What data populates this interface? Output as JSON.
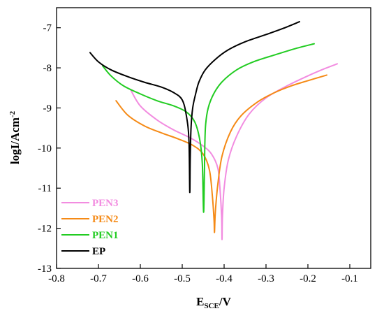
{
  "chart_data": {
    "type": "line",
    "title": "",
    "xlabel": {
      "main": "E",
      "sub": "SCE",
      "rest": "/V"
    },
    "ylabel": {
      "main": "logI/Acm",
      "sup": "-2"
    },
    "xlim": [
      -0.8,
      -0.05
    ],
    "ylim": [
      -13,
      -6.5
    ],
    "xticks": [
      -0.8,
      -0.7,
      -0.6,
      -0.5,
      -0.4,
      -0.3,
      -0.2,
      -0.1
    ],
    "xtick_labels": [
      "-0.8",
      "-0.7",
      "-0.6",
      "-0.5",
      "-0.4",
      "-0.3",
      "-0.2",
      "-0.1"
    ],
    "yticks": [
      -7,
      -8,
      -9,
      -10,
      -11,
      -12,
      -13
    ],
    "ytick_labels": [
      "-7",
      "-8",
      "-9",
      "-10",
      "-11",
      "-12",
      "-13"
    ],
    "grid": false,
    "legend_position": "bottom-left",
    "series": [
      {
        "name": "PEN3",
        "color": "#f28ce0",
        "x": [
          -0.623,
          -0.6,
          -0.56,
          -0.52,
          -0.48,
          -0.45,
          -0.43,
          -0.415,
          -0.41,
          -0.406,
          -0.405,
          -0.404,
          -0.4,
          -0.39,
          -0.37,
          -0.34,
          -0.3,
          -0.25,
          -0.2,
          -0.16,
          -0.13
        ],
        "y": [
          -8.55,
          -8.95,
          -9.3,
          -9.55,
          -9.75,
          -9.95,
          -10.15,
          -10.5,
          -11.0,
          -11.7,
          -12.28,
          -11.7,
          -11.0,
          -10.3,
          -9.7,
          -9.15,
          -8.75,
          -8.45,
          -8.2,
          -8.02,
          -7.9
        ]
      },
      {
        "name": "PEN2",
        "color": "#f58a16",
        "x": [
          -0.658,
          -0.63,
          -0.59,
          -0.55,
          -0.51,
          -0.475,
          -0.45,
          -0.435,
          -0.428,
          -0.424,
          -0.423,
          -0.421,
          -0.415,
          -0.405,
          -0.385,
          -0.36,
          -0.32,
          -0.28,
          -0.24,
          -0.2,
          -0.155
        ],
        "y": [
          -8.82,
          -9.18,
          -9.45,
          -9.62,
          -9.77,
          -9.93,
          -10.15,
          -10.55,
          -11.2,
          -11.8,
          -12.1,
          -11.6,
          -10.9,
          -10.2,
          -9.6,
          -9.2,
          -8.85,
          -8.62,
          -8.45,
          -8.32,
          -8.18
        ]
      },
      {
        "name": "PEN1",
        "color": "#22cc22",
        "x": [
          -0.69,
          -0.67,
          -0.64,
          -0.6,
          -0.56,
          -0.52,
          -0.49,
          -0.47,
          -0.458,
          -0.452,
          -0.449,
          -0.447,
          -0.446,
          -0.444,
          -0.438,
          -0.425,
          -0.405,
          -0.37,
          -0.33,
          -0.28,
          -0.23,
          -0.185
        ],
        "y": [
          -7.95,
          -8.2,
          -8.45,
          -8.65,
          -8.82,
          -8.95,
          -9.1,
          -9.35,
          -9.8,
          -10.4,
          -11.6,
          -10.6,
          -9.9,
          -9.4,
          -9.0,
          -8.65,
          -8.35,
          -8.05,
          -7.85,
          -7.68,
          -7.52,
          -7.4
        ]
      },
      {
        "name": "EP",
        "color": "#000000",
        "x": [
          -0.72,
          -0.7,
          -0.67,
          -0.63,
          -0.59,
          -0.55,
          -0.52,
          -0.5,
          -0.49,
          -0.484,
          -0.482,
          -0.481,
          -0.479,
          -0.475,
          -0.468,
          -0.46,
          -0.445,
          -0.42,
          -0.39,
          -0.35,
          -0.3,
          -0.26,
          -0.22
        ],
        "y": [
          -7.62,
          -7.85,
          -8.05,
          -8.22,
          -8.36,
          -8.48,
          -8.62,
          -8.8,
          -9.2,
          -9.8,
          -11.1,
          -10.3,
          -9.5,
          -9.0,
          -8.65,
          -8.35,
          -8.05,
          -7.78,
          -7.55,
          -7.35,
          -7.17,
          -7.02,
          -6.85
        ]
      }
    ],
    "legend": [
      {
        "label": "PEN3",
        "color": "#f28ce0"
      },
      {
        "label": "PEN2",
        "color": "#f58a16"
      },
      {
        "label": "PEN1",
        "color": "#22cc22"
      },
      {
        "label": "EP",
        "color": "#000000"
      }
    ]
  }
}
